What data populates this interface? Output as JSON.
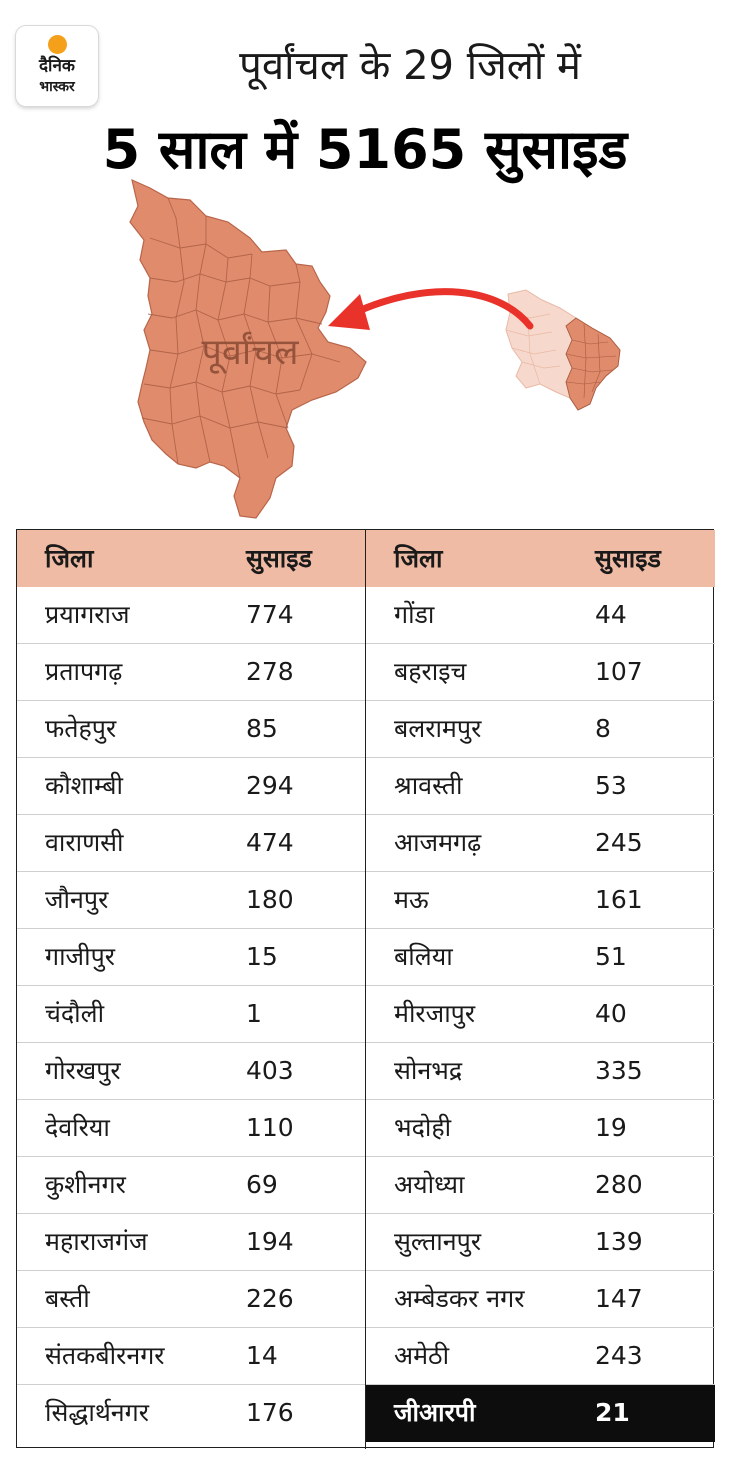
{
  "logo": {
    "line1": "दैनिक",
    "line2": "भास्कर"
  },
  "headline": {
    "line1": "पूर्वांचल के 29 जिलों में",
    "line2": "5 साल में 5165 सुसाइड"
  },
  "map": {
    "label": "पूर्वांचल"
  },
  "colors": {
    "map_fill": "#df8b6c",
    "map_light": "#f7d8cc",
    "arrow": "#e8322a",
    "header_fill": "#f0bba4",
    "row_highlight": "#0d0d0d"
  },
  "table": {
    "headers": {
      "district": "जिला",
      "suicides": "सुसाइड"
    },
    "left": [
      {
        "district": "प्रयागराज",
        "count": "774"
      },
      {
        "district": "प्रतापगढ़",
        "count": "278"
      },
      {
        "district": "फतेहपुर",
        "count": "85"
      },
      {
        "district": "कौशाम्बी",
        "count": "294"
      },
      {
        "district": "वाराणसी",
        "count": "474"
      },
      {
        "district": "जौनपुर",
        "count": "180"
      },
      {
        "district": "गाजीपुर",
        "count": "15"
      },
      {
        "district": "चंदौली",
        "count": "1"
      },
      {
        "district": "गोरखपुर",
        "count": "403"
      },
      {
        "district": "देवरिया",
        "count": "110"
      },
      {
        "district": "कुशीनगर",
        "count": "69"
      },
      {
        "district": "महाराजगंज",
        "count": "194"
      },
      {
        "district": "बस्ती",
        "count": "226"
      },
      {
        "district": "संतकबीरनगर",
        "count": "14"
      },
      {
        "district": "सिद्धार्थनगर",
        "count": "176"
      }
    ],
    "right": [
      {
        "district": "गोंडा",
        "count": "44"
      },
      {
        "district": "बहराइच",
        "count": "107"
      },
      {
        "district": "बलरामपुर",
        "count": "8"
      },
      {
        "district": "श्रावस्ती",
        "count": "53"
      },
      {
        "district": "आजमगढ़",
        "count": "245"
      },
      {
        "district": "मऊ",
        "count": "161"
      },
      {
        "district": "बलिया",
        "count": "51"
      },
      {
        "district": "मीरजापुर",
        "count": "40"
      },
      {
        "district": "सोनभद्र",
        "count": "335"
      },
      {
        "district": "भदोही",
        "count": "19"
      },
      {
        "district": "अयोध्या",
        "count": "280"
      },
      {
        "district": "सुल्तानपुर",
        "count": "139"
      },
      {
        "district": "अम्बेडकर नगर",
        "count": "147"
      },
      {
        "district": "अमेठी",
        "count": "243"
      },
      {
        "district": "जीआरपी",
        "count": "21"
      }
    ]
  }
}
